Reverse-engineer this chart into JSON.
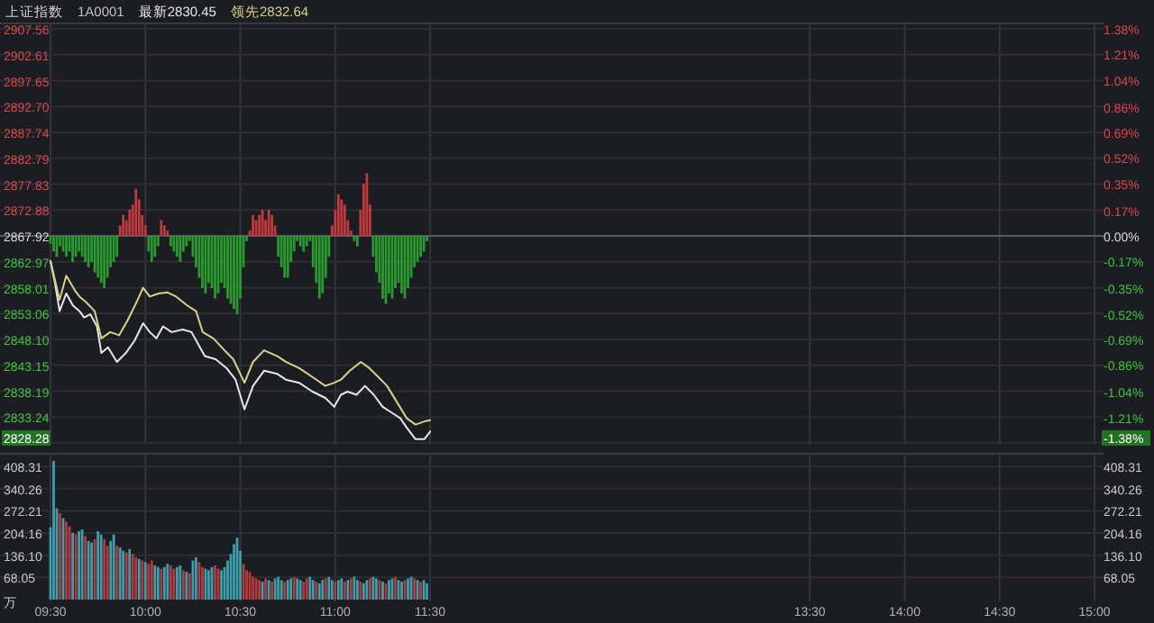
{
  "chart_data": [
    {
      "type": "line",
      "title": "上证指数",
      "subtitle": "1A0001",
      "legend": "top left",
      "grid": true,
      "tick_labels": "y",
      "xlim": [
        9.5,
        15
      ],
      "xticks": [
        {
          "value": 9.5,
          "label": null
        },
        {
          "value": 10,
          "label": null
        },
        {
          "value": 10.5,
          "label": null
        },
        {
          "value": 11,
          "label": null
        },
        {
          "value": 11.5,
          "label": null
        },
        {
          "value": 13.5,
          "label": null
        },
        {
          "value": 14,
          "label": null
        },
        {
          "value": 14.5,
          "label": null
        },
        {
          "value": 15,
          "label": null
        }
      ],
      "ylim": [
        2828.28,
        2907.56
      ],
      "yticks": [
        2907.56,
        2902.61,
        2897.65,
        {
          "value": 2892.7,
          "label": "2892.70"
        },
        2887.74,
        2882.79,
        2877.83,
        2872.88,
        2867.92,
        2862.97,
        2858.01,
        2853.06,
        {
          "value": 2848.1,
          "label": "2848.10"
        },
        2843.15,
        2838.19,
        2833.24,
        2828.28
      ],
      "y2lim": [
        -1.38,
        1.38
      ],
      "y2ticks": [
        {
          "value": 1.38,
          "label": "1.38%"
        },
        {
          "value": 1.21,
          "label": "1.21%"
        },
        {
          "value": 1.04,
          "label": "1.04%"
        },
        {
          "value": 0.86,
          "label": "0.86%"
        },
        {
          "value": 0.69,
          "label": "0.69%"
        },
        {
          "value": 0.52,
          "label": "0.52%"
        },
        {
          "value": 0.35,
          "label": "0.35%"
        },
        {
          "value": 0.17,
          "label": "0.17%"
        },
        {
          "value": 0,
          "label": "0.00%"
        },
        {
          "value": -0.17,
          "label": "-0.17%"
        },
        {
          "value": -0.35,
          "label": "-0.35%"
        },
        {
          "value": -0.52,
          "label": "-0.52%"
        },
        {
          "value": -0.69,
          "label": "-0.69%"
        },
        {
          "value": -0.86,
          "label": "-0.86%"
        },
        {
          "value": -1.04,
          "label": "-1.04%"
        },
        {
          "value": -1.21,
          "label": "-1.21%"
        },
        {
          "value": -1.38,
          "label": "-1.38%"
        }
      ],
      "ref_lines": [
        {
          "axis": "y",
          "value": 2867.92,
          "color": "#5a5b60"
        }
      ],
      "series": [
        {
          "type": "bar",
          "color": "#c0393d",
          "x": [
            9.8667,
            9.8833,
            9.9,
            9.9167,
            9.9333,
            9.95,
            9.9667,
            9.9833,
            10,
            10.0833,
            10.1,
            10.1167,
            10.55,
            10.5667,
            10.5833,
            10.6,
            10.6167,
            10.6333,
            10.65,
            10.6667,
            10.6833,
            10.9833,
            11,
            11.0167,
            11.0333,
            11.05,
            11.0667,
            11.0833,
            11.1333,
            11.15,
            11.1667,
            11.1833
          ],
          "values": [
            2,
            4,
            3,
            5,
            6,
            9,
            7,
            4,
            2,
            3,
            2,
            1,
            1,
            4,
            3,
            4,
            5,
            3,
            5,
            4,
            2,
            2,
            5,
            8,
            7,
            6,
            3,
            1,
            5,
            10,
            12,
            6
          ],
          "base": [
            2867.92,
            2867.92,
            2867.92,
            2867.92,
            2867.92,
            2867.92,
            2867.92,
            2867.92,
            2867.92,
            2867.92,
            2867.92,
            2867.92,
            2867.92,
            2867.92,
            2867.92,
            2867.92,
            2867.92,
            2867.92,
            2867.92,
            2867.92,
            2867.92,
            2867.92,
            2867.92,
            2867.92,
            2867.92,
            2867.92,
            2867.92,
            2867.92,
            2867.92,
            2867.92,
            2867.92,
            2867.92
          ]
        },
        {
          "type": "bar",
          "color": "#2a9a2e",
          "x": [
            9.5,
            9.5167,
            9.5333,
            9.55,
            9.5667,
            9.5833,
            9.6,
            9.6167,
            9.6333,
            9.65,
            9.6667,
            9.6833,
            9.7,
            9.7167,
            9.7333,
            9.75,
            9.7667,
            9.7833,
            9.8,
            9.8167,
            9.8333,
            9.85,
            10.0167,
            10.0333,
            10.05,
            10.0667,
            10.1333,
            10.15,
            10.1667,
            10.1833,
            10.2,
            10.2167,
            10.2333,
            10.25,
            10.2667,
            10.2833,
            10.3,
            10.3167,
            10.3333,
            10.35,
            10.3667,
            10.3833,
            10.4,
            10.4167,
            10.4333,
            10.45,
            10.4667,
            10.4833,
            10.5,
            10.5167,
            10.5333,
            10.7,
            10.7167,
            10.7333,
            10.75,
            10.7667,
            10.7833,
            10.8,
            10.8167,
            10.8333,
            10.85,
            10.8667,
            10.8833,
            10.9,
            10.9167,
            10.9333,
            10.95,
            10.9667,
            11.1,
            11.1167,
            11.2,
            11.2167,
            11.2333,
            11.25,
            11.2667,
            11.2833,
            11.3,
            11.3167,
            11.3333,
            11.35,
            11.3667,
            11.3833,
            11.4,
            11.4167,
            11.4333,
            11.45,
            11.4667,
            11.4833
          ],
          "values": [
            -1.5,
            -3,
            -4,
            -2,
            -3,
            -4,
            -3,
            -5,
            -4,
            -3,
            -4,
            -5,
            -6,
            -5,
            -7,
            -8,
            -9,
            -10,
            -8,
            -6,
            -5,
            -4,
            -3,
            -5,
            -4,
            -2,
            -2,
            -3,
            -4,
            -5,
            -3,
            -2,
            -1,
            -4,
            -6,
            -8,
            -10,
            -11,
            -9,
            -10,
            -12,
            -11,
            -9,
            -10,
            -12,
            -13,
            -14,
            -15,
            -12,
            -6,
            -1,
            -4,
            -6,
            -8,
            -8,
            -5,
            -3,
            -1,
            -2,
            -3,
            -2,
            -1,
            -6,
            -9,
            -12,
            -11,
            -8,
            -4,
            -1,
            -2,
            -4,
            -7,
            -9,
            -12,
            -13,
            -11,
            -12,
            -10,
            -9,
            -11,
            -12,
            -10,
            -8,
            -6,
            -5,
            -4,
            -3,
            -1
          ],
          "base": [
            2867.92,
            2867.92,
            2867.92,
            2867.92,
            2867.92,
            2867.92,
            2867.92,
            2867.92,
            2867.92,
            2867.92,
            2867.92,
            2867.92,
            2867.92,
            2867.92,
            2867.92,
            2867.92,
            2867.92,
            2867.92,
            2867.92,
            2867.92,
            2867.92,
            2867.92,
            2867.92,
            2867.92,
            2867.92,
            2867.92,
            2867.92,
            2867.92,
            2867.92,
            2867.92,
            2867.92,
            2867.92,
            2867.92,
            2867.92,
            2867.92,
            2867.92,
            2867.92,
            2867.92,
            2867.92,
            2867.92,
            2867.92,
            2867.92,
            2867.92,
            2867.92,
            2867.92,
            2867.92,
            2867.92,
            2867.92,
            2867.92,
            2867.92,
            2867.92,
            2867.92,
            2867.92,
            2867.92,
            2867.92,
            2867.92,
            2867.92,
            2867.92,
            2867.92,
            2867.92,
            2867.92,
            2867.92,
            2867.92,
            2867.92,
            2867.92,
            2867.92,
            2867.92,
            2867.92,
            2867.92,
            2867.92,
            2867.92,
            2867.92,
            2867.92,
            2867.92,
            2867.92,
            2867.92,
            2867.92,
            2867.92,
            2867.92,
            2867.92,
            2867.92,
            2867.92,
            2867.92,
            2867.92,
            2867.92,
            2867.92,
            2867.92,
            2867.92
          ]
        },
        {
          "name": "最新2830.45",
          "color": "#e6e6e6",
          "x": [
            9.5,
            9.525,
            9.548,
            9.583,
            9.618,
            9.653,
            9.677,
            9.71,
            9.745,
            9.768,
            9.803,
            9.85,
            9.897,
            9.942,
            9.988,
            10.023,
            10.058,
            10.093,
            10.138,
            10.197,
            10.243,
            10.278,
            10.313,
            10.37,
            10.428,
            10.475,
            10.522,
            10.567,
            10.625,
            10.695,
            10.74,
            10.81,
            10.88,
            10.948,
            10.995,
            11.03,
            11.065,
            11.112,
            11.157,
            11.203,
            11.25,
            11.297,
            11.343,
            11.377,
            11.423,
            11.47,
            11.5
          ],
          "values": [
            2863.1,
            2858.6,
            2853.5,
            2856.9,
            2854.6,
            2853.5,
            2852.3,
            2852.9,
            2850.6,
            2845.5,
            2846.6,
            2843.8,
            2845.5,
            2847.8,
            2851.2,
            2849.5,
            2848.3,
            2850.6,
            2849.5,
            2850.0,
            2849.5,
            2847.2,
            2844.9,
            2844.3,
            2842.6,
            2840.4,
            2834.7,
            2839.2,
            2842.1,
            2841.5,
            2840.4,
            2839.8,
            2838.1,
            2836.9,
            2835.2,
            2837.5,
            2838.1,
            2837.5,
            2839.2,
            2837.5,
            2835.2,
            2834.1,
            2833.0,
            2831.2,
            2829.0,
            2829.0,
            2830.45
          ]
        },
        {
          "name": "领先2832.64",
          "color": "#d6d28a",
          "x": [
            9.5,
            9.525,
            9.548,
            9.583,
            9.63,
            9.653,
            9.688,
            9.733,
            9.768,
            9.815,
            9.862,
            9.907,
            9.953,
            9.988,
            10.023,
            10.07,
            10.117,
            10.162,
            10.22,
            10.267,
            10.302,
            10.358,
            10.417,
            10.463,
            10.522,
            10.567,
            10.625,
            10.695,
            10.74,
            10.81,
            10.88,
            10.948,
            10.995,
            11.03,
            11.077,
            11.135,
            11.18,
            11.227,
            11.273,
            11.32,
            11.377,
            11.423,
            11.47,
            11.5
          ],
          "values": [
            2863.1,
            2859.2,
            2855.7,
            2860.3,
            2857.4,
            2856.3,
            2855.2,
            2853.5,
            2848.3,
            2849.5,
            2848.9,
            2851.8,
            2855.2,
            2858.0,
            2856.3,
            2856.9,
            2857.1,
            2856.3,
            2854.6,
            2853.5,
            2849.5,
            2848.3,
            2846.0,
            2844.3,
            2839.8,
            2843.8,
            2846.0,
            2844.9,
            2843.8,
            2842.6,
            2840.9,
            2839.2,
            2839.8,
            2840.4,
            2842.1,
            2843.8,
            2842.6,
            2840.9,
            2839.2,
            2836.4,
            2833.0,
            2831.8,
            2832.4,
            2832.64
          ]
        }
      ]
    },
    {
      "type": "bar",
      "ylabel": "万",
      "grid": true,
      "xlim": [
        9.5,
        15
      ],
      "xticks": [
        {
          "value": 9.5,
          "label": "09:30"
        },
        {
          "value": 10,
          "label": "10:00"
        },
        {
          "value": 10.5,
          "label": "10:30"
        },
        {
          "value": 11,
          "label": "11:00"
        },
        {
          "value": 11.5,
          "label": "11:30"
        },
        {
          "value": 13.5,
          "label": "13:30"
        },
        {
          "value": 14,
          "label": "14:00"
        },
        {
          "value": 14.5,
          "label": "14:30"
        },
        {
          "value": 15,
          "label": "15:00"
        }
      ],
      "ylim": [
        0,
        431
      ],
      "yticks": [
        408.31,
        340.26,
        272.21,
        204.16,
        {
          "value": 136.1,
          "label": "136.10"
        },
        68.05
      ],
      "y2lim": [
        0,
        431
      ],
      "y2ticks": [
        408.31,
        340.26,
        272.21,
        204.16,
        {
          "value": 136.1,
          "label": "136.10"
        },
        68.05
      ],
      "series": [
        {
          "color": "#b53a3e",
          "x": [
            9.55,
            9.5833,
            9.6,
            9.6333,
            9.6833,
            9.7333,
            9.7833,
            9.8,
            9.85,
            9.9,
            9.9333,
            9.95,
            9.9833,
            10.0167,
            10.0333,
            10.0833,
            10.1333,
            10.15,
            10.2,
            10.2333,
            10.2833,
            10.3,
            10.3667,
            10.3833,
            10.5167,
            10.5333,
            10.55,
            10.5667,
            10.5833,
            10.6,
            10.6333,
            10.6667,
            10.7333,
            10.7833,
            10.8333,
            10.85,
            10.9,
            10.95,
            11,
            11.05,
            11.0833,
            11.1333,
            11.1833,
            11.2333,
            11.2667,
            11.3167,
            11.3667,
            11.4167,
            11.45
          ],
          "values": [
            265,
            240,
            225,
            200,
            195,
            185,
            185,
            165,
            165,
            145,
            140,
            130,
            120,
            110,
            120,
            95,
            105,
            95,
            90,
            80,
            115,
            100,
            105,
            95,
            110,
            90,
            85,
            70,
            65,
            60,
            65,
            55,
            55,
            70,
            55,
            65,
            55,
            65,
            55,
            55,
            65,
            55,
            65,
            60,
            50,
            70,
            60,
            65,
            55
          ]
        },
        {
          "color": "#3b9fac",
          "x": [
            9.5,
            9.5167,
            9.5333,
            9.5667,
            9.6167,
            9.65,
            9.6667,
            9.7,
            9.7167,
            9.75,
            9.7667,
            9.8167,
            9.8333,
            9.8667,
            9.8833,
            9.9167,
            9.9667,
            10,
            10.05,
            10.0667,
            10.1,
            10.1167,
            10.1667,
            10.1833,
            10.2167,
            10.25,
            10.2667,
            10.3167,
            10.3333,
            10.35,
            10.4,
            10.4167,
            10.4333,
            10.45,
            10.4667,
            10.4833,
            10.5,
            10.6167,
            10.65,
            10.6833,
            10.7,
            10.7167,
            10.75,
            10.7667,
            10.8,
            10.8167,
            10.8667,
            10.8833,
            10.9167,
            10.9333,
            10.9667,
            10.9833,
            11.0167,
            11.0333,
            11.0667,
            11.1,
            11.1167,
            11.15,
            11.1667,
            11.2,
            11.2167,
            11.25,
            11.2833,
            11.3,
            11.3333,
            11.35,
            11.3833,
            11.4,
            11.4333,
            11.4667,
            11.4833
          ],
          "values": [
            222,
            426,
            280,
            250,
            205,
            210,
            215,
            180,
            175,
            210,
            200,
            180,
            200,
            160,
            150,
            155,
            125,
            115,
            105,
            100,
            100,
            110,
            100,
            105,
            85,
            120,
            130,
            95,
            90,
            100,
            90,
            100,
            120,
            140,
            170,
            190,
            150,
            55,
            60,
            65,
            70,
            60,
            60,
            65,
            65,
            60,
            70,
            60,
            50,
            60,
            70,
            60,
            60,
            65,
            60,
            70,
            60,
            50,
            60,
            70,
            65,
            55,
            60,
            65,
            60,
            55,
            65,
            70,
            60,
            60,
            50
          ]
        }
      ]
    }
  ]
}
